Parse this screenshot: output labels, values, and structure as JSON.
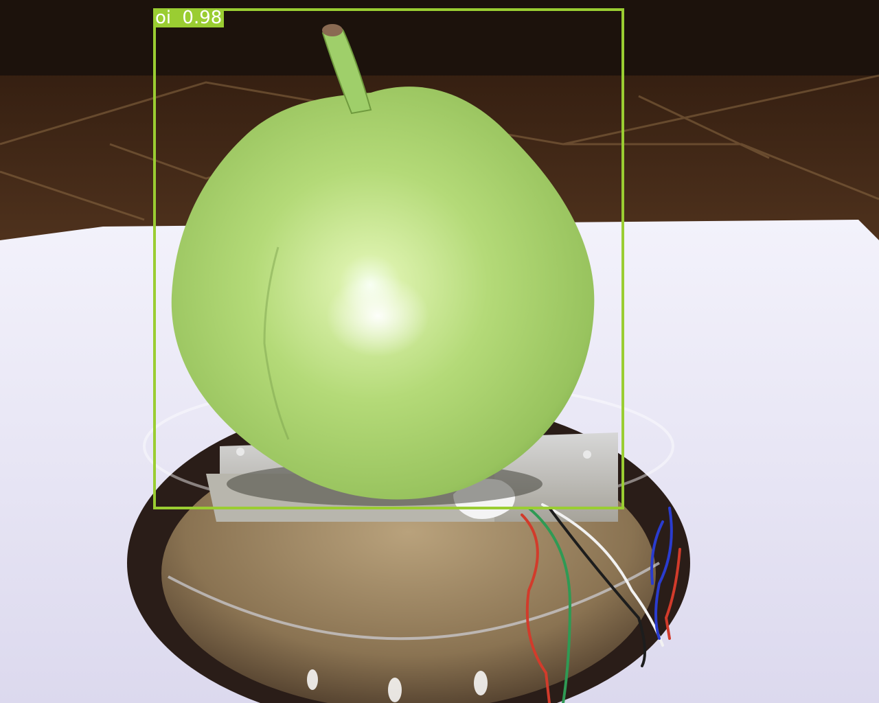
{
  "detection": {
    "label": "oi",
    "score": "0.98",
    "box_color": "#9acd32",
    "label_text_color": "#ffffff"
  },
  "scene": {
    "subject": "guava-fruit",
    "colors": {
      "wall": "#2a1a12",
      "floor": "#6b4a2f",
      "table": "#e6e3f2",
      "fruit": "#a6d26a",
      "fruit_shadow": "#6f9a3e",
      "bowl": "#8b7a5e",
      "wire_red": "#d23b2b",
      "wire_green": "#2f9a54",
      "wire_blue": "#2a3ccf",
      "wire_white": "#f2f2f2"
    }
  }
}
